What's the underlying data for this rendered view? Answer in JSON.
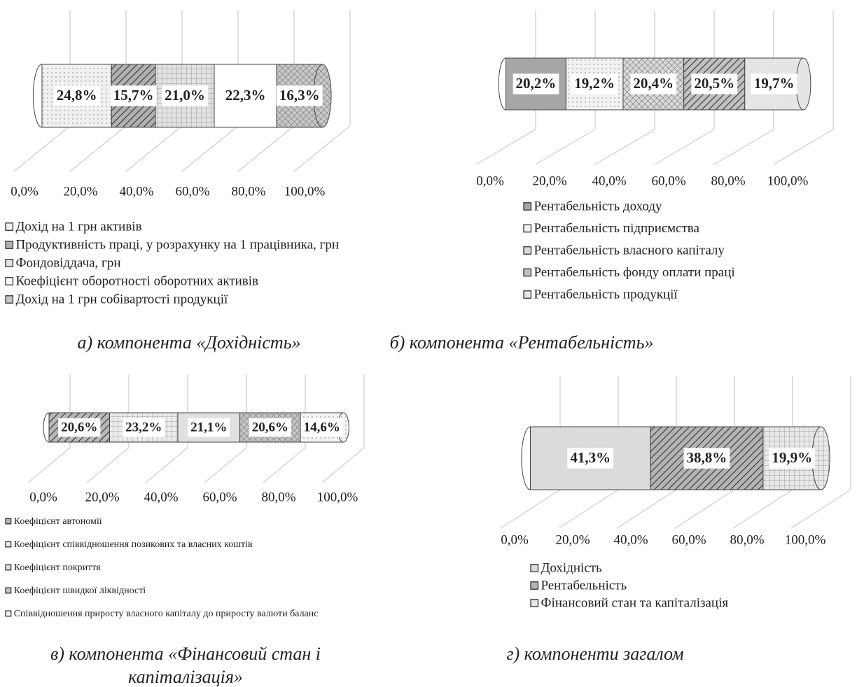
{
  "chart_data": [
    {
      "type": "bar",
      "orientation": "horizontal",
      "stacked": true,
      "caption": [
        "а) компонента «Дохідність»"
      ],
      "xlim": [
        0,
        100
      ],
      "xticks": [
        {
          "value": 0,
          "label": "0,0%"
        },
        {
          "value": 20,
          "label": "20,0%"
        },
        {
          "value": 40,
          "label": "40,0%"
        },
        {
          "value": 60,
          "label": "60,0%"
        },
        {
          "value": 80,
          "label": "80,0%"
        },
        {
          "value": 100,
          "label": "100,0%"
        }
      ],
      "series": [
        {
          "name": "Дохід на 1 грн активів",
          "color": "#f0f0f0",
          "values": [
            24.8
          ],
          "value_labels": [
            "24,8%"
          ]
        },
        {
          "name": "Продуктивність праці, у розрахунку на 1 працівника, грн",
          "color": "#b0b0b0",
          "values": [
            15.7
          ],
          "value_labels": [
            "15,7%"
          ]
        },
        {
          "name": "Фондовіддача, грн",
          "color": "#e2e2e2",
          "values": [
            21.0
          ],
          "value_labels": [
            "21,0%"
          ]
        },
        {
          "name": "Коефіцієнт оборотності оборотних активів",
          "color": "#ffffff",
          "values": [
            22.3
          ],
          "value_labels": [
            "22,3%"
          ]
        },
        {
          "name": "Дохід на 1 грн собівартості продукції",
          "color": "#c8c8c8",
          "values": [
            16.3
          ],
          "value_labels": [
            "16,3%"
          ]
        }
      ]
    },
    {
      "type": "bar",
      "orientation": "horizontal",
      "stacked": true,
      "caption": [
        "б) компонента «Рентабельність»"
      ],
      "xlim": [
        0,
        100
      ],
      "xticks": [
        {
          "value": 0,
          "label": "0,0%"
        },
        {
          "value": 20,
          "label": "20,0%"
        },
        {
          "value": 40,
          "label": "40,0%"
        },
        {
          "value": 60,
          "label": "60,0%"
        },
        {
          "value": 80,
          "label": "80,0%"
        },
        {
          "value": 100,
          "label": "100,0%"
        }
      ],
      "series": [
        {
          "name": "Рентабельність доходу",
          "color": "#a6a6a6",
          "values": [
            20.2
          ],
          "value_labels": [
            "20,2%"
          ]
        },
        {
          "name": "Рентабельність підприємства",
          "color": "#f2f2f2",
          "values": [
            19.2
          ],
          "value_labels": [
            "19,2%"
          ]
        },
        {
          "name": "Рентабельність власного капіталу",
          "color": "#d9d9d9",
          "values": [
            20.4
          ],
          "value_labels": [
            "20,4%"
          ]
        },
        {
          "name": "Рентабельність фонду оплати праці",
          "color": "#c0c0c0",
          "values": [
            20.5
          ],
          "value_labels": [
            "20,5%"
          ]
        },
        {
          "name": "Рентабельність продукції",
          "color": "#e6e6e6",
          "values": [
            19.7
          ],
          "value_labels": [
            "19,7%"
          ]
        }
      ]
    },
    {
      "type": "bar",
      "orientation": "horizontal",
      "stacked": true,
      "caption": [
        "в) компонента «Фінансовий стан і",
        "капіталізація»"
      ],
      "xlim": [
        0,
        100
      ],
      "xticks": [
        {
          "value": 0,
          "label": "0,0%"
        },
        {
          "value": 20,
          "label": "20,0%"
        },
        {
          "value": 40,
          "label": "40,0%"
        },
        {
          "value": 60,
          "label": "60,0%"
        },
        {
          "value": 80,
          "label": "80,0%"
        },
        {
          "value": 100,
          "label": "100,0%"
        }
      ],
      "series": [
        {
          "name": "Коефіцієнт автономії",
          "color": "#b8b8b8",
          "values": [
            20.6
          ],
          "value_labels": [
            "20,6%"
          ]
        },
        {
          "name": "Коефіцієнт співвідношення позикових та власних коштів",
          "color": "#ececec",
          "values": [
            23.2
          ],
          "value_labels": [
            "23,2%"
          ]
        },
        {
          "name": "Коефіцієнт покриття",
          "color": "#e0e0e0",
          "values": [
            21.1
          ],
          "value_labels": [
            "21,1%"
          ]
        },
        {
          "name": "Коефіцієнт швидкої ліквідності",
          "color": "#c4c4c4",
          "values": [
            20.6
          ],
          "value_labels": [
            "20,6%"
          ]
        },
        {
          "name": "Співвідношення приросту власного капіталу  до приросту валюти баланс",
          "color": "#f4f4f4",
          "values": [
            14.6
          ],
          "value_labels": [
            "14,6%"
          ]
        }
      ]
    },
    {
      "type": "bar",
      "orientation": "horizontal",
      "stacked": true,
      "caption": [
        "г) компоненти загалом"
      ],
      "xlim": [
        0,
        100
      ],
      "xticks": [
        {
          "value": 0,
          "label": "0,0%"
        },
        {
          "value": 20,
          "label": "20,0%"
        },
        {
          "value": 40,
          "label": "40,0%"
        },
        {
          "value": 60,
          "label": "60,0%"
        },
        {
          "value": 80,
          "label": "80,0%"
        },
        {
          "value": 100,
          "label": "100,0%"
        }
      ],
      "series": [
        {
          "name": "Дохідність",
          "color": "#dcdcdc",
          "values": [
            41.3
          ],
          "value_labels": [
            "41,3%"
          ]
        },
        {
          "name": "Рентабельність",
          "color": "#b4b4b4",
          "values": [
            38.8
          ],
          "value_labels": [
            "38,8%"
          ]
        },
        {
          "name": "Фінансовий стан та капіталізація",
          "color": "#e8e8e8",
          "values": [
            19.9
          ],
          "value_labels": [
            "19,9%"
          ]
        }
      ]
    }
  ]
}
